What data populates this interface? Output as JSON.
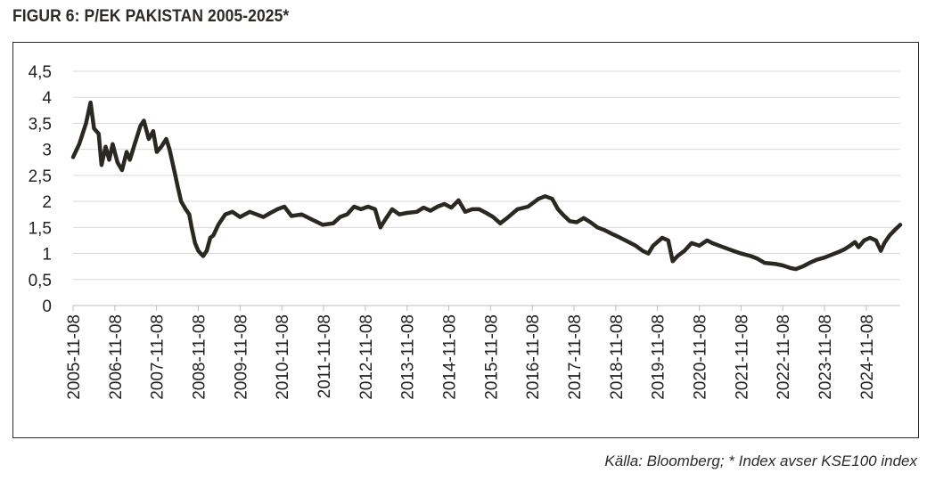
{
  "title": "FIGUR 6: P/EK PAKISTAN 2005-2025*",
  "source": "Källa: Bloomberg; * Index avser KSE100 index",
  "colors": {
    "line": "#2b2721",
    "grid": "#d9d9d9",
    "text": "#222222"
  },
  "chart_data": {
    "type": "line",
    "title": "",
    "xlabel": "",
    "ylabel": "",
    "ylim": [
      0,
      4.5
    ],
    "grid": "horizontal",
    "legend": "none",
    "xlim": [
      "2005-11-08",
      "2025-09-01"
    ],
    "y_ticks": [
      "0",
      "0,5",
      "1",
      "1,5",
      "2",
      "2,5",
      "3",
      "3,5",
      "4",
      "4,5"
    ],
    "x_ticks": [
      "2005-11-08",
      "2006-11-08",
      "2007-11-08",
      "2008-11-08",
      "2009-11-08",
      "2010-11-08",
      "2011-11-08",
      "2012-11-08",
      "2013-11-08",
      "2014-11-08",
      "2015-11-08",
      "2016-11-08",
      "2017-11-08",
      "2018-11-08",
      "2019-11-08",
      "2020-11-08",
      "2021-11-08",
      "2022-11-08",
      "2023-11-08",
      "2024-11-08"
    ],
    "series": [
      {
        "values": [
          [
            "2005-11-08",
            2.85
          ],
          [
            "2006-01-01",
            3.1
          ],
          [
            "2006-03-01",
            3.5
          ],
          [
            "2006-04-10",
            3.9
          ],
          [
            "2006-05-10",
            3.4
          ],
          [
            "2006-06-20",
            3.3
          ],
          [
            "2006-07-15",
            2.7
          ],
          [
            "2006-08-20",
            3.05
          ],
          [
            "2006-09-20",
            2.8
          ],
          [
            "2006-10-20",
            3.1
          ],
          [
            "2006-12-01",
            2.75
          ],
          [
            "2007-01-10",
            2.6
          ],
          [
            "2007-02-20",
            2.95
          ],
          [
            "2007-03-20",
            2.8
          ],
          [
            "2007-05-01",
            3.1
          ],
          [
            "2007-06-20",
            3.45
          ],
          [
            "2007-07-20",
            3.55
          ],
          [
            "2007-09-01",
            3.2
          ],
          [
            "2007-10-10",
            3.35
          ],
          [
            "2007-11-10",
            2.95
          ],
          [
            "2007-12-20",
            3.05
          ],
          [
            "2008-02-01",
            3.2
          ],
          [
            "2008-03-01",
            3.0
          ],
          [
            "2008-04-10",
            2.6
          ],
          [
            "2008-05-10",
            2.3
          ],
          [
            "2008-06-10",
            2.0
          ],
          [
            "2008-07-20",
            1.85
          ],
          [
            "2008-08-20",
            1.75
          ],
          [
            "2008-09-10",
            1.5
          ],
          [
            "2008-10-10",
            1.2
          ],
          [
            "2008-11-08",
            1.05
          ],
          [
            "2008-12-20",
            0.95
          ],
          [
            "2009-01-20",
            1.05
          ],
          [
            "2009-02-20",
            1.3
          ],
          [
            "2009-03-20",
            1.35
          ],
          [
            "2009-05-01",
            1.55
          ],
          [
            "2009-07-01",
            1.75
          ],
          [
            "2009-09-01",
            1.8
          ],
          [
            "2009-11-08",
            1.7
          ],
          [
            "2010-02-01",
            1.8
          ],
          [
            "2010-04-01",
            1.75
          ],
          [
            "2010-06-01",
            1.7
          ],
          [
            "2010-08-01",
            1.78
          ],
          [
            "2010-10-01",
            1.85
          ],
          [
            "2010-12-01",
            1.9
          ],
          [
            "2011-02-01",
            1.72
          ],
          [
            "2011-05-01",
            1.75
          ],
          [
            "2011-08-01",
            1.65
          ],
          [
            "2011-11-01",
            1.55
          ],
          [
            "2012-02-01",
            1.58
          ],
          [
            "2012-04-01",
            1.7
          ],
          [
            "2012-06-01",
            1.75
          ],
          [
            "2012-08-01",
            1.9
          ],
          [
            "2012-10-01",
            1.85
          ],
          [
            "2012-12-01",
            1.9
          ],
          [
            "2013-02-01",
            1.85
          ],
          [
            "2013-03-20",
            1.5
          ],
          [
            "2013-05-01",
            1.65
          ],
          [
            "2013-07-01",
            1.85
          ],
          [
            "2013-09-01",
            1.75
          ],
          [
            "2013-11-08",
            1.78
          ],
          [
            "2014-02-01",
            1.8
          ],
          [
            "2014-04-01",
            1.88
          ],
          [
            "2014-06-01",
            1.82
          ],
          [
            "2014-08-01",
            1.9
          ],
          [
            "2014-10-01",
            1.95
          ],
          [
            "2014-12-01",
            1.88
          ],
          [
            "2015-02-01",
            2.02
          ],
          [
            "2015-04-01",
            1.8
          ],
          [
            "2015-06-01",
            1.85
          ],
          [
            "2015-08-01",
            1.85
          ],
          [
            "2015-10-01",
            1.78
          ],
          [
            "2015-12-01",
            1.7
          ],
          [
            "2016-02-01",
            1.58
          ],
          [
            "2016-04-01",
            1.68
          ],
          [
            "2016-07-01",
            1.85
          ],
          [
            "2016-10-01",
            1.9
          ],
          [
            "2017-01-01",
            2.05
          ],
          [
            "2017-03-01",
            2.1
          ],
          [
            "2017-05-01",
            2.05
          ],
          [
            "2017-06-20",
            1.85
          ],
          [
            "2017-08-01",
            1.75
          ],
          [
            "2017-10-01",
            1.62
          ],
          [
            "2017-12-01",
            1.6
          ],
          [
            "2018-02-01",
            1.68
          ],
          [
            "2018-04-01",
            1.6
          ],
          [
            "2018-06-01",
            1.5
          ],
          [
            "2018-08-01",
            1.45
          ],
          [
            "2018-10-01",
            1.38
          ],
          [
            "2018-12-01",
            1.32
          ],
          [
            "2019-03-01",
            1.22
          ],
          [
            "2019-05-01",
            1.15
          ],
          [
            "2019-07-01",
            1.05
          ],
          [
            "2019-08-20",
            1.0
          ],
          [
            "2019-10-01",
            1.15
          ],
          [
            "2019-12-20",
            1.3
          ],
          [
            "2020-02-10",
            1.25
          ],
          [
            "2020-03-20",
            0.85
          ],
          [
            "2020-05-01",
            0.95
          ],
          [
            "2020-07-01",
            1.05
          ],
          [
            "2020-09-01",
            1.2
          ],
          [
            "2020-11-08",
            1.15
          ],
          [
            "2021-01-15",
            1.25
          ],
          [
            "2021-03-01",
            1.2
          ],
          [
            "2021-05-01",
            1.15
          ],
          [
            "2021-07-01",
            1.1
          ],
          [
            "2021-09-01",
            1.05
          ],
          [
            "2021-11-08",
            1.0
          ],
          [
            "2022-02-01",
            0.95
          ],
          [
            "2022-04-01",
            0.9
          ],
          [
            "2022-06-01",
            0.82
          ],
          [
            "2022-09-01",
            0.8
          ],
          [
            "2022-11-08",
            0.77
          ],
          [
            "2023-01-15",
            0.72
          ],
          [
            "2023-03-01",
            0.7
          ],
          [
            "2023-05-01",
            0.75
          ],
          [
            "2023-07-01",
            0.82
          ],
          [
            "2023-09-01",
            0.88
          ],
          [
            "2023-11-08",
            0.92
          ],
          [
            "2024-01-15",
            0.98
          ],
          [
            "2024-03-01",
            1.02
          ],
          [
            "2024-05-01",
            1.08
          ],
          [
            "2024-06-20",
            1.15
          ],
          [
            "2024-08-01",
            1.22
          ],
          [
            "2024-09-01",
            1.12
          ],
          [
            "2024-10-20",
            1.25
          ],
          [
            "2024-12-10",
            1.3
          ],
          [
            "2025-02-01",
            1.25
          ],
          [
            "2025-03-15",
            1.05
          ],
          [
            "2025-04-15",
            1.2
          ],
          [
            "2025-06-01",
            1.35
          ],
          [
            "2025-07-15",
            1.45
          ],
          [
            "2025-09-01",
            1.55
          ]
        ]
      }
    ]
  }
}
